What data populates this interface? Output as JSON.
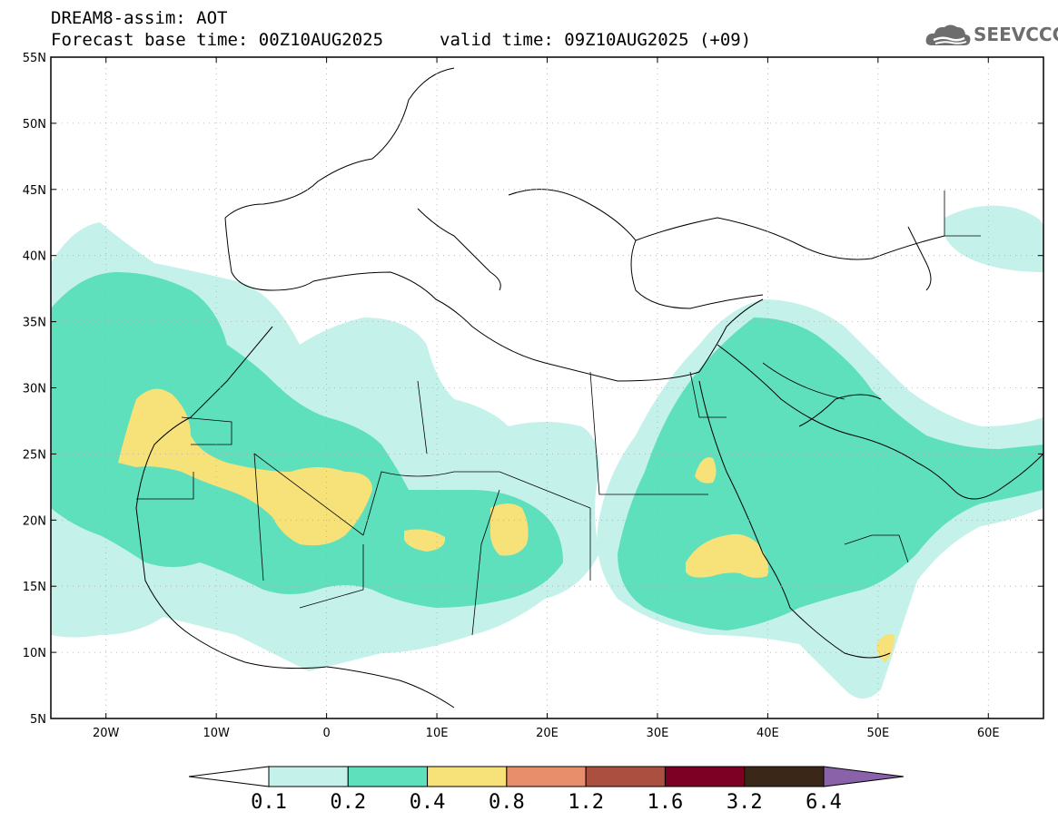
{
  "header": {
    "title": "DREAM8-assim: AOT",
    "base_time": "Forecast base time: 00Z10AUG2025",
    "valid_time": "valid time: 09Z10AUG2025 (+09)"
  },
  "logo": {
    "text": "SEEVCCC",
    "icon": "cloud-logo-icon",
    "color": "#6d6d6d"
  },
  "map": {
    "lon_range": [
      -25,
      65
    ],
    "lat_range": [
      5,
      55
    ],
    "lat_labels": [
      "55N",
      "50N",
      "45N",
      "40N",
      "35N",
      "30N",
      "25N",
      "20N",
      "15N",
      "10N",
      "5N"
    ],
    "lon_labels": [
      "20W",
      "10W",
      "0",
      "10E",
      "20E",
      "30E",
      "40E",
      "50E",
      "60E"
    ],
    "grid": "dotted"
  },
  "colorbar": {
    "labels": [
      "0.1",
      "0.2",
      "0.4",
      "0.8",
      "1.2",
      "1.6",
      "3.2",
      "6.4"
    ],
    "colors": [
      "#ffffff",
      "#c4f2ea",
      "#5ee0bc",
      "#f7e27a",
      "#e98e6a",
      "#ab4f41",
      "#7d0024",
      "#3b2717",
      "#8a62a9"
    ]
  }
}
